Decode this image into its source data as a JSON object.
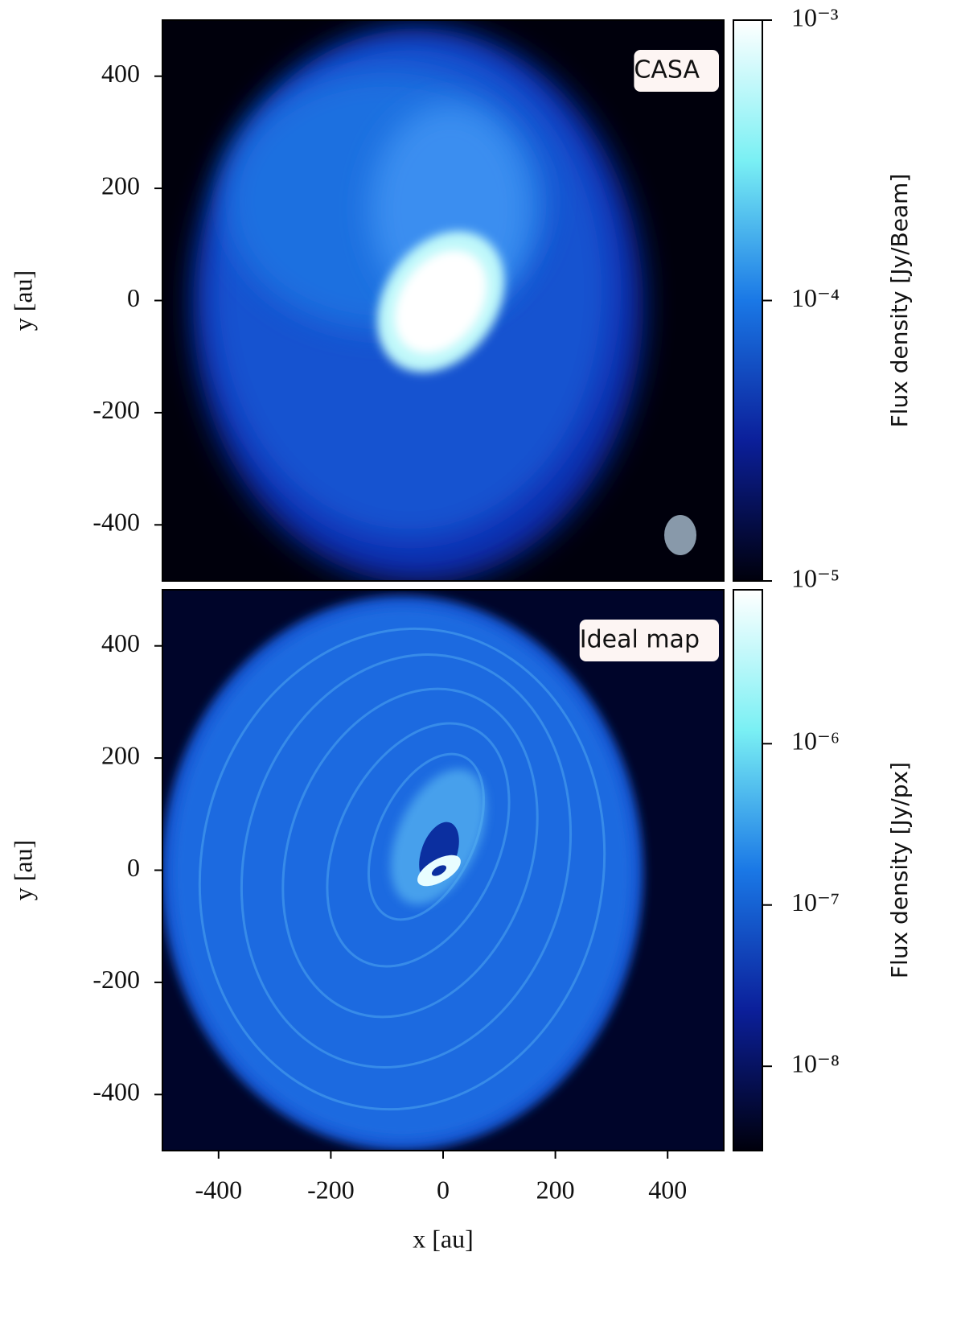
{
  "chart_data": [
    {
      "type": "image",
      "annotation": "CASA",
      "xlim": [
        -500,
        500
      ],
      "ylim": [
        -500,
        500
      ],
      "yticks": [
        -400,
        -200,
        0,
        200,
        400
      ],
      "ylabel": "y [au]",
      "colorbar": {
        "label": "Flux density [Jy/Beam]",
        "log": true,
        "clim": [
          1e-05,
          0.001
        ],
        "ticks": [
          {
            "value": 1e-05,
            "label": "10⁻⁵"
          },
          {
            "value": 0.0001,
            "label": "10⁻⁴"
          },
          {
            "value": 0.001,
            "label": "10⁻³"
          }
        ]
      },
      "colormap": [
        "#00000c",
        "#0b1f9a",
        "#1a78e6",
        "#7af0f4",
        "#ffffff"
      ]
    },
    {
      "type": "image",
      "annotation": "Ideal map",
      "xlim": [
        -500,
        500
      ],
      "ylim": [
        -500,
        500
      ],
      "xticks": [
        -400,
        -200,
        0,
        200,
        400
      ],
      "yticks": [
        -400,
        -200,
        0,
        200,
        400
      ],
      "xlabel": "x [au]",
      "ylabel": "y [au]",
      "colorbar": {
        "label": "Flux density [Jy/px]",
        "log": true,
        "clim": [
          3e-09,
          9e-06
        ],
        "ticks": [
          {
            "value": 1e-08,
            "label": "10⁻⁸"
          },
          {
            "value": 1e-07,
            "label": "10⁻⁷"
          },
          {
            "value": 1e-06,
            "label": "10⁻⁶"
          }
        ]
      },
      "colormap": [
        "#00000c",
        "#0b1f9a",
        "#1a78e6",
        "#7af0f4",
        "#ffffff"
      ]
    }
  ]
}
